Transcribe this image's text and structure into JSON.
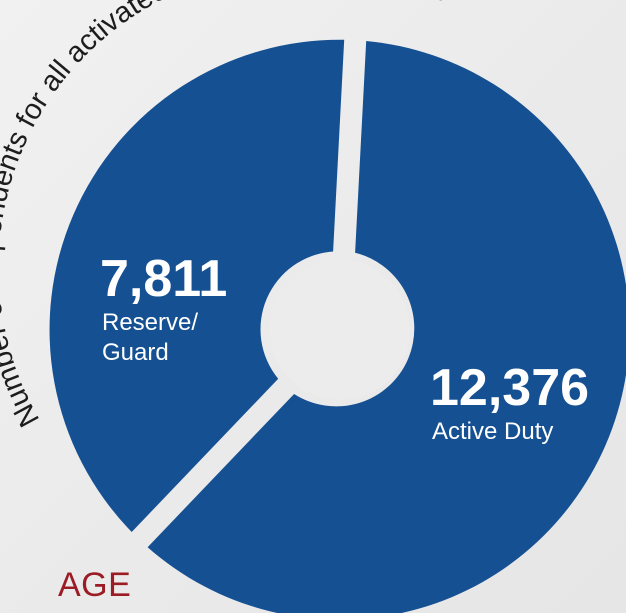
{
  "chart_data": {
    "type": "pie",
    "title": "Number of dependents for all activated ND Service Members",
    "colors": {
      "slice": "#155092",
      "background": "#eeeeee"
    },
    "slices": [
      {
        "label_lines": [
          "Reserve/",
          "Guard"
        ],
        "value": 7811,
        "value_text": "7,811"
      },
      {
        "label_lines": [
          "Active Duty"
        ],
        "value": 12376,
        "value_text": "12,376"
      }
    ],
    "donut": true
  },
  "footer": {
    "label": "AGE"
  }
}
